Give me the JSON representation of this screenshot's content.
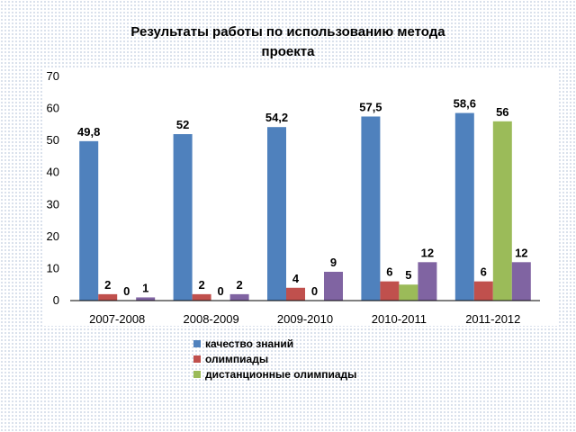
{
  "chart_data": {
    "type": "bar",
    "title_lines": [
      "Результаты работы по использованию метода",
      "проекта"
    ],
    "categories": [
      "2007-2008",
      "2008-2009",
      "2009-2010",
      "2010-2011",
      "2011-2012"
    ],
    "series": [
      {
        "name": "качество знаний",
        "color": "#4f81bd",
        "values": [
          49.8,
          52,
          54.2,
          57.5,
          58.6
        ],
        "labels": [
          "49,8",
          "52",
          "54,2",
          "57,5",
          "58,6"
        ]
      },
      {
        "name": "олимпиады",
        "color": "#c0504d",
        "values": [
          2,
          2,
          4,
          6,
          6
        ],
        "labels": [
          "2",
          "2",
          "4",
          "6",
          "6"
        ]
      },
      {
        "name": "дистанционные олимпиады",
        "color": "#9bbb59",
        "values": [
          0,
          0,
          0,
          5,
          56
        ],
        "labels": [
          "0",
          "0",
          "0",
          "5",
          "56"
        ]
      },
      {
        "name": "",
        "color": "#8064a2",
        "values": [
          1,
          2,
          9,
          12,
          12
        ],
        "labels": [
          "1",
          "2",
          "9",
          "12",
          "12"
        ]
      }
    ],
    "y_ticks": [
      "0",
      "10",
      "20",
      "30",
      "40",
      "50",
      "60",
      "70"
    ],
    "ylim": [
      0,
      70
    ],
    "grid": false,
    "legend_position": "bottom"
  }
}
